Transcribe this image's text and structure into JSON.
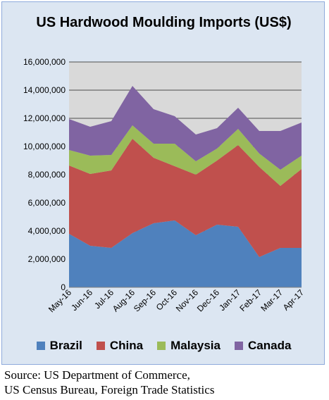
{
  "chart_data": {
    "type": "area",
    "stacked": true,
    "title": "US Hardwood Moulding Imports (US$)",
    "xlabel": "",
    "ylabel": "",
    "ylim": [
      0,
      16000000
    ],
    "yticks": [
      "0",
      "2,000,000",
      "4,000,000",
      "6,000,000",
      "8,000,000",
      "10,000,000",
      "12,000,000",
      "14,000,000",
      "16,000,000"
    ],
    "ytick_values": [
      0,
      2000000,
      4000000,
      6000000,
      8000000,
      10000000,
      12000000,
      14000000,
      16000000
    ],
    "grid": true,
    "legend_position": "bottom",
    "categories": [
      "May-16",
      "Jun-16",
      "Jul-16",
      "Aug-16",
      "Sep-16",
      "Oct-16",
      "Nov-16",
      "Dec-16",
      "Jan-17",
      "Feb-17",
      "Mar-17",
      "Apr-17"
    ],
    "series": [
      {
        "name": "Brazil",
        "color": "#4f81bd",
        "values": [
          3800000,
          2950000,
          2800000,
          3850000,
          4550000,
          4750000,
          3700000,
          4450000,
          4300000,
          2150000,
          2800000,
          2800000
        ]
      },
      {
        "name": "China",
        "color": "#c0504d",
        "values": [
          4850000,
          5100000,
          5500000,
          6700000,
          4650000,
          3850000,
          4300000,
          4550000,
          5800000,
          6400000,
          4400000,
          5600000
        ]
      },
      {
        "name": "Malaysia",
        "color": "#9bbb59",
        "values": [
          1100000,
          1300000,
          1100000,
          950000,
          1000000,
          1600000,
          950000,
          850000,
          1150000,
          950000,
          1150000,
          950000
        ]
      },
      {
        "name": "Canada",
        "color": "#8064a2",
        "values": [
          2200000,
          2050000,
          2400000,
          2800000,
          2450000,
          1950000,
          1900000,
          1450000,
          1500000,
          1600000,
          2750000,
          2350000
        ]
      }
    ]
  },
  "source": {
    "line1": "Source: US Department of Commerce,",
    "line2": "US Census Bureau, Foreign Trade Statistics"
  }
}
